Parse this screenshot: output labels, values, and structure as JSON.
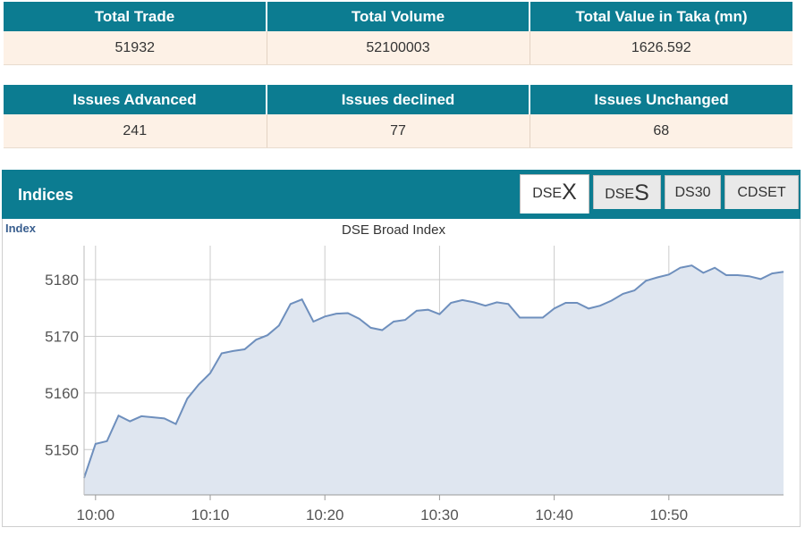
{
  "summary": {
    "headers": [
      "Total Trade",
      "Total Volume",
      "Total Value in Taka (mn)"
    ],
    "values": [
      "51932",
      "52100003",
      "1626.592"
    ]
  },
  "issues": {
    "headers": [
      "Issues Advanced",
      "Issues declined",
      "Issues Unchanged"
    ],
    "values": [
      "241",
      "77",
      "68"
    ]
  },
  "indices": {
    "title": "Indices",
    "tabs": [
      {
        "prefix": "DSE",
        "suffix": "X",
        "active": true
      },
      {
        "prefix": "DSE",
        "suffix": "S",
        "active": false
      },
      {
        "label": "DS30",
        "active": false
      },
      {
        "label": "CDSET",
        "active": false
      }
    ]
  },
  "chart_data": {
    "type": "area",
    "title": "DSE Broad Index",
    "ylabel": "Index",
    "xlabel": "",
    "x_ticks": [
      "10:00",
      "10:10",
      "10:20",
      "10:30",
      "10:40",
      "10:50"
    ],
    "y_ticks": [
      5150,
      5160,
      5170,
      5180
    ],
    "ylim": [
      5142,
      5186
    ],
    "xlim": [
      "09:59",
      "11:00"
    ],
    "grid": true,
    "colors": {
      "line": "#6e8fbd",
      "fill": "#dfe6f0",
      "grid": "#cccccc"
    },
    "x": [
      "09:59",
      "10:00",
      "10:01",
      "10:02",
      "10:03",
      "10:04",
      "10:05",
      "10:06",
      "10:07",
      "10:08",
      "10:09",
      "10:10",
      "10:11",
      "10:12",
      "10:13",
      "10:14",
      "10:15",
      "10:16",
      "10:17",
      "10:18",
      "10:19",
      "10:20",
      "10:21",
      "10:22",
      "10:23",
      "10:24",
      "10:25",
      "10:26",
      "10:27",
      "10:28",
      "10:29",
      "10:30",
      "10:31",
      "10:32",
      "10:33",
      "10:34",
      "10:35",
      "10:36",
      "10:37",
      "10:38",
      "10:39",
      "10:40",
      "10:41",
      "10:42",
      "10:43",
      "10:44",
      "10:45",
      "10:46",
      "10:47",
      "10:48",
      "10:49",
      "10:50",
      "10:51",
      "10:52",
      "10:53",
      "10:54",
      "10:55",
      "10:56",
      "10:57",
      "10:58",
      "10:59",
      "11:00"
    ],
    "values": [
      5145.0,
      5151.0,
      5151.5,
      5156.0,
      5155.0,
      5155.9,
      5155.7,
      5155.5,
      5154.5,
      5159.0,
      5161.5,
      5163.5,
      5167.0,
      5167.4,
      5167.7,
      5169.4,
      5170.2,
      5171.9,
      5175.7,
      5176.5,
      5172.6,
      5173.5,
      5174.0,
      5174.1,
      5173.1,
      5171.5,
      5171.1,
      5172.6,
      5172.9,
      5174.5,
      5174.7,
      5173.9,
      5175.9,
      5176.4,
      5176.0,
      5175.4,
      5176.0,
      5175.7,
      5173.3,
      5173.3,
      5173.3,
      5174.9,
      5175.9,
      5175.9,
      5174.9,
      5175.4,
      5176.3,
      5177.5,
      5178.1,
      5179.8,
      5180.4,
      5180.9,
      5182.1,
      5182.5,
      5181.2,
      5182.1,
      5180.8,
      5180.8,
      5180.6,
      5180.1,
      5181.1,
      5181.4
    ]
  }
}
